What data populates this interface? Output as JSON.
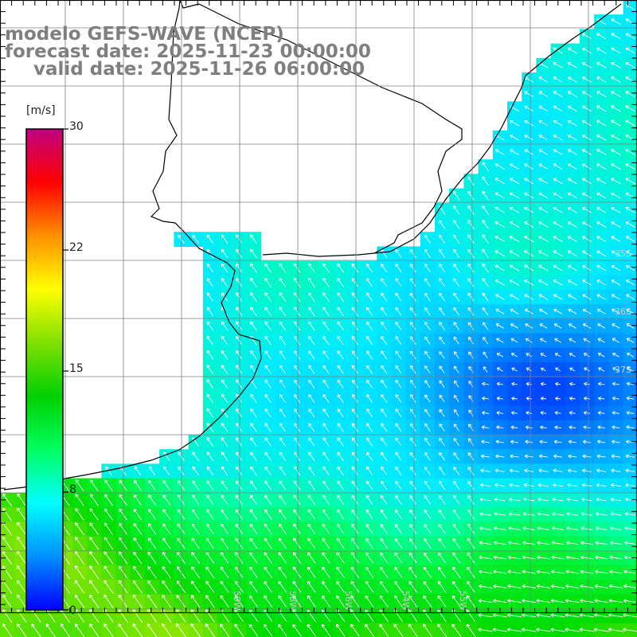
{
  "header": {
    "line1": "modelo GEFS-WAVE (NCEP)",
    "line2": "forecast date: 2025-11-23 00:00:00",
    "line3": "valid date: 2025-11-26 06:00:00"
  },
  "colorbar": {
    "unit": "[m/s]",
    "ticks": [
      "30",
      "22",
      "15",
      "8",
      "0"
    ],
    "range": [
      0,
      30
    ],
    "colors": [
      "#0000ff",
      "#0090ff",
      "#00ffff",
      "#00ff60",
      "#00d000",
      "#80e000",
      "#ffff00",
      "#ff9000",
      "#ff0000",
      "#c00080"
    ]
  },
  "map": {
    "region": "southern Brazil / Uruguay / Río de la Plata coast",
    "lat_labels": [
      "35S",
      "36S",
      "37S"
    ],
    "lon_labels": [
      "59W",
      "58W",
      "56W",
      "54W",
      "55W"
    ],
    "vector_color": "#ffffff",
    "land_color": "#ffffff",
    "coastline_color": "#000000",
    "grid_color": "#808080"
  }
}
